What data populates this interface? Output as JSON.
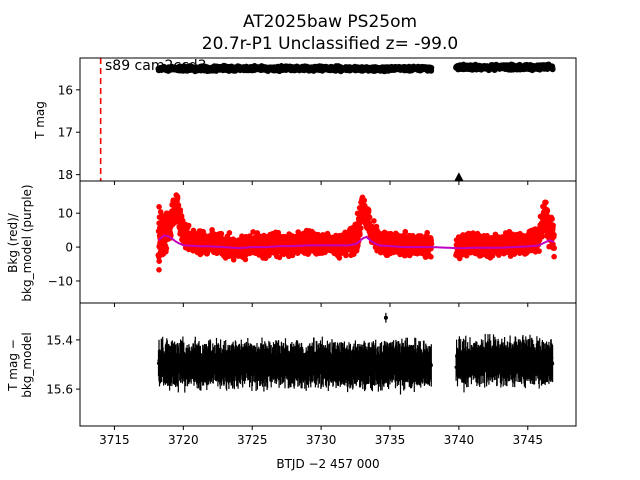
{
  "figure": {
    "title_line1": "AT2025baw  PS25om",
    "title_line2": "20.7r-P1 Unclassified z= -99.0",
    "xlabel": "BTJD −2 457 000"
  },
  "chart_data": [
    {
      "panel": "top",
      "type": "scatter",
      "ylabel": "T mag",
      "y_inverted": true,
      "xlim": [
        3712.5,
        3748.5
      ],
      "ylim": [
        18.15,
        15.25
      ],
      "yticks": [
        16,
        17,
        18
      ],
      "ytick_labels": [
        "16",
        "17",
        "18"
      ],
      "annotation": "s89 cam2ccd3",
      "vline": {
        "x": 3714,
        "style": "dashed",
        "color": "#ff0000"
      },
      "series": [
        {
          "type": "band",
          "x_range": [
            3718.2,
            3738.0
          ],
          "y_center": 15.5,
          "y_spread": 0.12,
          "color": "#000000"
        },
        {
          "type": "band",
          "x_range": [
            3739.8,
            3746.8
          ],
          "y_center": 15.47,
          "y_spread": 0.13,
          "color": "#000000"
        }
      ],
      "marker": {
        "shape": "triangle-up",
        "x": 3740,
        "y": 18.05,
        "color": "#000000"
      }
    },
    {
      "panel": "middle",
      "type": "scatter",
      "ylabel_line1": "Bkg (red)/",
      "ylabel_line2": "bkg_model (purple)",
      "xlim": [
        3712.5,
        3748.5
      ],
      "ylim": [
        -16.5,
        19.5
      ],
      "yticks": [
        -10,
        0,
        10
      ],
      "ytick_labels": [
        "−10",
        "0",
        "10"
      ],
      "series": [
        {
          "name": "Bkg",
          "color": "#ff0000",
          "x": [
            3718.2,
            3718.6,
            3719.0,
            3719.5,
            3720.0,
            3721,
            3722,
            3723,
            3724,
            3725,
            3726,
            3727,
            3728,
            3729,
            3730,
            3731,
            3732,
            3732.6,
            3733.0,
            3733.3,
            3733.7,
            3734.2,
            3735,
            3736,
            3737,
            3738.0,
            3739.8,
            3740.5,
            3741,
            3742,
            3743,
            3744,
            3745,
            3745.8,
            3746.3,
            3746.6,
            3746.9
          ],
          "y": [
            2,
            4,
            6,
            12,
            4,
            1,
            1.5,
            0.5,
            -0.5,
            0.5,
            0,
            1,
            0.5,
            1.5,
            1,
            1,
            1,
            3,
            12,
            9,
            4,
            2,
            1,
            0.5,
            0.5,
            0.5,
            0,
            1,
            1,
            0.5,
            0.5,
            1,
            1,
            3,
            10,
            5,
            2
          ],
          "spread": [
            14,
            10,
            7,
            6,
            5,
            4.5,
            4.5,
            4.5,
            4.5,
            4.5,
            4.5,
            4.5,
            4.5,
            4.5,
            4.5,
            4.5,
            4.5,
            7,
            6,
            6,
            6,
            5,
            4.5,
            4.5,
            4.5,
            4.5,
            5,
            4.5,
            4.5,
            4.5,
            4.5,
            4.5,
            4.5,
            5,
            7,
            8,
            12
          ]
        },
        {
          "name": "bkg_model",
          "color": "#c000c0",
          "x": [
            3718.2,
            3718.6,
            3719.0,
            3719.5,
            3720.0,
            3721,
            3722,
            3723,
            3724,
            3725,
            3726,
            3727,
            3728,
            3729,
            3730,
            3731,
            3732,
            3732.6,
            3733.0,
            3733.3,
            3733.7,
            3734.2,
            3735,
            3736,
            3737,
            3738.0,
            3739.8,
            3740.5,
            3741,
            3742,
            3743,
            3744,
            3745,
            3745.8,
            3746.3,
            3746.6,
            3746.9
          ],
          "y": [
            2,
            3.5,
            3,
            1.5,
            0.5,
            0.3,
            0.2,
            0,
            -0.3,
            0,
            0,
            0.3,
            0.3,
            0.5,
            0.5,
            0.5,
            0.5,
            1,
            2.5,
            3,
            1.5,
            0.5,
            0.3,
            0,
            0,
            0,
            -0.3,
            -0.3,
            -0.2,
            -0.2,
            -0.2,
            0,
            0.2,
            0.5,
            1.5,
            2,
            1.5
          ]
        }
      ]
    },
    {
      "panel": "bottom",
      "type": "scatter",
      "ylabel_line1": "T mag −",
      "ylabel_line2": "bkg_model",
      "y_inverted": true,
      "xlim": [
        3712.5,
        3748.5
      ],
      "ylim": [
        15.75,
        15.25
      ],
      "yticks": [
        15.4,
        15.6
      ],
      "ytick_labels": [
        "15.4",
        "15.6"
      ],
      "xticks": [
        3715,
        3720,
        3725,
        3730,
        3735,
        3740,
        3745
      ],
      "xtick_labels": [
        "3715",
        "3720",
        "3725",
        "3730",
        "3735",
        "3740",
        "3745"
      ],
      "series": [
        {
          "type": "band",
          "x_range": [
            3718.2,
            3738.0
          ],
          "y_center": 15.5,
          "y_spread": 0.08,
          "color": "#000000"
        },
        {
          "type": "band",
          "x_range": [
            3739.8,
            3746.8
          ],
          "y_center": 15.49,
          "y_spread": 0.08,
          "color": "#000000"
        }
      ]
    }
  ]
}
